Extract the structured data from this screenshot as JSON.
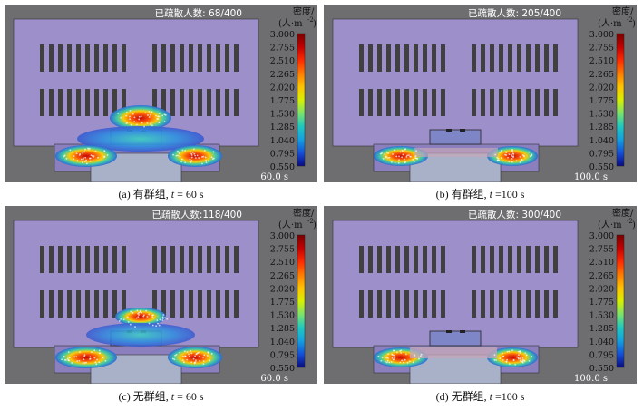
{
  "colorbar": {
    "title_line1": "密度/",
    "title_line2": "(人·m",
    "title_sup": "-2",
    "title_close": ")",
    "ticks": [
      "3.000",
      "2.755",
      "2.510",
      "2.265",
      "2.020",
      "1.775",
      "1.530",
      "1.285",
      "1.040",
      "0.795",
      "0.550"
    ],
    "colors": [
      "#7a0000",
      "#c40000",
      "#ff2a00",
      "#ff7a00",
      "#ffc400",
      "#d8f000",
      "#7be36b",
      "#20c8c0",
      "#14a0e0",
      "#1450d8",
      "#0a0a80"
    ]
  },
  "colors": {
    "floor": "#9d8fca",
    "dark_bg": "#6e6e70",
    "lower_room": "#8b80bd",
    "aisle": "#c4a6b8",
    "box": "#a9b1c9",
    "obstacle": "#404040"
  },
  "panels": [
    {
      "status": "已疏散人数: 68/400",
      "time": "60.0 s",
      "caption_prefix": "(a) 有群组, ",
      "caption_var": "t",
      "caption_suffix": " = 60 s",
      "crowd": "upper"
    },
    {
      "status": "已疏散人数: 205/400",
      "time": "100.0 s",
      "caption_prefix": "(b) 有群组, ",
      "caption_var": "t",
      "caption_suffix": " =100 s",
      "crowd": "lower"
    },
    {
      "status": "已疏散人数:118/400",
      "time": "60.0 s",
      "caption_prefix": "(c) 无群组, ",
      "caption_var": "t",
      "caption_suffix": " = 60 s",
      "crowd": "upper"
    },
    {
      "status": "已疏散人数: 300/400",
      "time": "100.0 s",
      "caption_prefix": "(d) 无群组, ",
      "caption_var": "t",
      "caption_suffix": " =100 s",
      "crowd": "lower"
    }
  ]
}
